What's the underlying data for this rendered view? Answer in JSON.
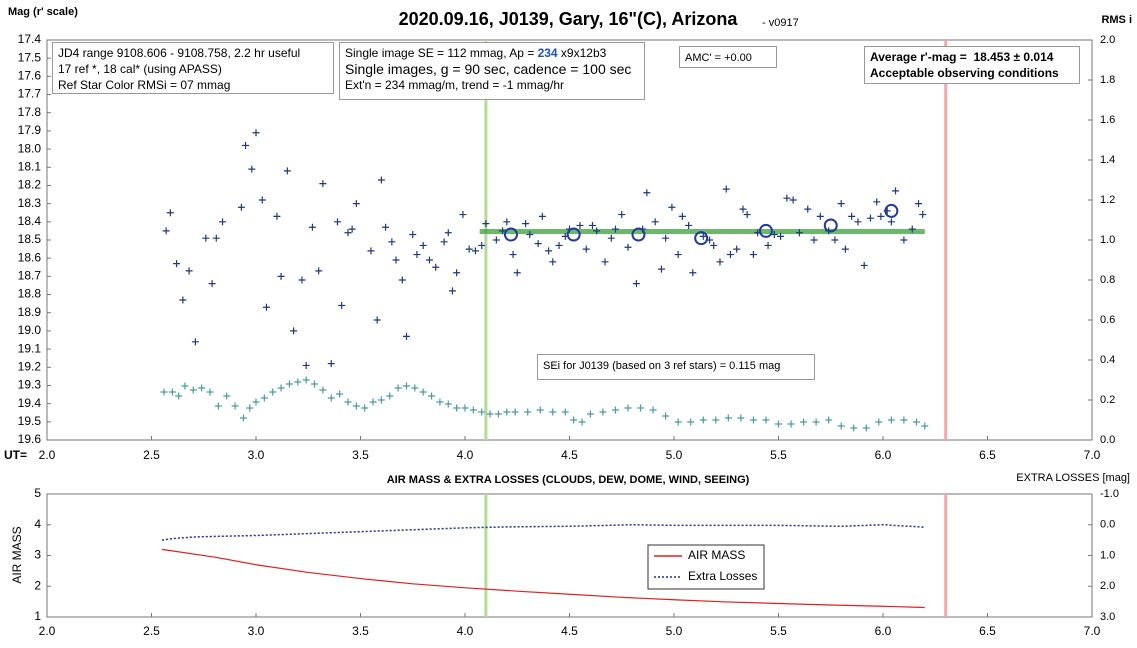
{
  "chart_data": [
    {
      "type": "scatter",
      "title": "2020.09.16, J0139, Gary, 16\"(C), Arizona",
      "subtitle": " - v0917",
      "ylabel": "Mag (r' scale)",
      "y2label": "RMS i",
      "xlabel": "UT=",
      "xlim": [
        2,
        7
      ],
      "xticks": [
        {
          "value": 2,
          "label": "2.0"
        },
        2.5,
        {
          "value": 3,
          "label": "3.0"
        },
        3.5,
        {
          "value": 4,
          "label": "4.0"
        },
        4.5,
        {
          "value": 5,
          "label": "5.0"
        },
        5.5,
        {
          "value": 6,
          "label": "6.0"
        },
        6.5,
        {
          "value": 7,
          "label": "7.0"
        }
      ],
      "ylim": [
        17.4,
        19.6
      ],
      "y_inverted": true,
      "yticks": [
        17.4,
        17.5,
        17.6,
        17.7,
        17.8,
        17.9,
        {
          "value": 18,
          "label": "18.0"
        },
        18.1,
        18.2,
        18.3,
        18.4,
        18.5,
        18.6,
        18.7,
        18.8,
        18.9,
        {
          "value": 19,
          "label": "19.0"
        },
        19.1,
        19.2,
        19.3,
        19.4,
        19.5,
        19.6
      ],
      "y2lim": [
        0,
        2
      ],
      "y2ticks": [
        {
          "value": 0,
          "label": "0.0"
        },
        0.2,
        0.4,
        0.6,
        0.8,
        {
          "value": 1,
          "label": "1.0"
        },
        1.2,
        1.4,
        1.6,
        1.8,
        {
          "value": 2,
          "label": "2.0"
        }
      ],
      "series": [
        {
          "color": "#1f3a7a",
          "marker": "plus",
          "x": [
            2.57,
            2.59,
            2.62,
            2.65,
            2.68,
            2.71,
            2.76,
            2.79,
            2.81,
            2.84,
            2.93,
            2.95,
            2.98,
            3.0,
            3.03,
            3.05,
            3.1,
            3.12,
            3.15,
            3.18,
            3.22,
            3.24,
            3.27,
            3.3,
            3.32,
            3.36,
            3.39,
            3.41,
            3.44,
            3.46,
            3.48,
            3.55,
            3.58,
            3.6,
            3.62,
            3.65,
            3.67,
            3.7,
            3.72,
            3.75,
            3.77,
            3.8,
            3.83,
            3.86,
            3.9,
            3.92,
            3.94,
            3.96,
            3.99,
            4.02,
            4.05,
            4.08,
            4.1,
            4.15,
            4.18,
            4.2,
            4.23,
            4.25,
            4.29,
            4.31,
            4.35,
            4.37,
            4.4,
            4.42,
            4.45,
            4.48,
            4.5,
            4.55,
            4.58,
            4.61,
            4.63,
            4.67,
            4.7,
            4.72,
            4.75,
            4.78,
            4.82,
            4.85,
            4.87,
            4.91,
            4.94,
            4.96,
            4.99,
            5.02,
            5.04,
            5.07,
            5.09,
            5.14,
            5.17,
            5.19,
            5.22,
            5.25,
            5.27,
            5.3,
            5.33,
            5.35,
            5.38,
            5.4,
            5.45,
            5.48,
            5.51,
            5.54,
            5.57,
            5.6,
            5.64,
            5.67,
            5.7,
            5.74,
            5.77,
            5.8,
            5.82,
            5.85,
            5.88,
            5.91,
            5.94,
            5.97,
            5.99,
            6.02,
            6.04,
            6.06,
            6.1,
            6.14,
            6.17,
            6.19
          ],
          "values": [
            18.45,
            18.35,
            18.63,
            18.83,
            18.67,
            19.06,
            18.49,
            18.74,
            18.49,
            18.4,
            18.32,
            17.98,
            18.11,
            17.91,
            18.28,
            18.87,
            18.37,
            18.7,
            18.12,
            19.0,
            18.72,
            19.19,
            18.43,
            18.67,
            18.19,
            19.18,
            18.4,
            18.86,
            18.46,
            18.44,
            18.3,
            18.56,
            18.94,
            18.17,
            18.43,
            18.51,
            18.61,
            18.72,
            19.03,
            18.47,
            18.58,
            18.53,
            18.61,
            18.65,
            18.51,
            18.46,
            18.78,
            18.68,
            18.36,
            18.55,
            18.56,
            18.53,
            18.41,
            18.5,
            18.45,
            18.4,
            18.58,
            18.68,
            18.41,
            18.47,
            18.52,
            18.37,
            18.56,
            18.62,
            18.53,
            18.48,
            18.44,
            18.42,
            18.55,
            18.42,
            18.45,
            18.62,
            18.49,
            18.44,
            18.36,
            18.54,
            18.74,
            18.44,
            18.24,
            18.4,
            18.66,
            18.49,
            18.32,
            18.58,
            18.37,
            18.42,
            18.68,
            18.48,
            18.5,
            18.53,
            18.62,
            18.22,
            18.58,
            18.55,
            18.33,
            18.36,
            18.58,
            18.46,
            18.53,
            18.47,
            18.48,
            18.27,
            18.28,
            18.46,
            18.33,
            18.5,
            18.37,
            18.45,
            18.5,
            18.3,
            18.55,
            18.37,
            18.4,
            18.64,
            18.38,
            18.29,
            18.37,
            18.34,
            18.4,
            18.23,
            18.5,
            18.44,
            18.3,
            18.36
          ]
        },
        {
          "color": "#1f3aa0",
          "marker": "circle",
          "x": [
            4.22,
            4.52,
            4.83,
            5.13,
            5.44,
            5.75,
            6.04
          ],
          "values": [
            18.47,
            18.47,
            18.47,
            18.49,
            18.45,
            18.42,
            18.34
          ]
        },
        {
          "color": "#4a9aa0",
          "marker": "plus",
          "axis": "y2",
          "x": [
            2.56,
            2.6,
            2.63,
            2.66,
            2.7,
            2.74,
            2.78,
            2.82,
            2.86,
            2.9,
            2.94,
            2.97,
            3.0,
            3.04,
            3.08,
            3.12,
            3.16,
            3.2,
            3.24,
            3.28,
            3.32,
            3.36,
            3.4,
            3.44,
            3.48,
            3.52,
            3.56,
            3.6,
            3.64,
            3.68,
            3.72,
            3.76,
            3.8,
            3.84,
            3.88,
            3.92,
            3.96,
            4.0,
            4.04,
            4.08,
            4.12,
            4.16,
            4.2,
            4.24,
            4.3,
            4.36,
            4.42,
            4.48,
            4.52,
            4.56,
            4.6,
            4.66,
            4.72,
            4.78,
            4.84,
            4.9,
            4.96,
            5.02,
            5.08,
            5.14,
            5.2,
            5.26,
            5.32,
            5.38,
            5.44,
            5.5,
            5.56,
            5.62,
            5.68,
            5.74,
            5.8,
            5.86,
            5.92,
            5.98,
            6.04,
            6.1,
            6.16,
            6.2
          ],
          "values": [
            0.24,
            0.24,
            0.22,
            0.27,
            0.25,
            0.26,
            0.24,
            0.17,
            0.22,
            0.17,
            0.11,
            0.16,
            0.19,
            0.21,
            0.24,
            0.26,
            0.28,
            0.29,
            0.3,
            0.28,
            0.25,
            0.21,
            0.23,
            0.19,
            0.17,
            0.16,
            0.19,
            0.2,
            0.22,
            0.26,
            0.27,
            0.26,
            0.24,
            0.22,
            0.19,
            0.18,
            0.16,
            0.16,
            0.15,
            0.14,
            0.13,
            0.13,
            0.14,
            0.14,
            0.14,
            0.15,
            0.14,
            0.14,
            0.1,
            0.09,
            0.13,
            0.14,
            0.15,
            0.16,
            0.16,
            0.15,
            0.12,
            0.09,
            0.09,
            0.1,
            0.1,
            0.11,
            0.11,
            0.1,
            0.1,
            0.08,
            0.08,
            0.09,
            0.09,
            0.1,
            0.07,
            0.06,
            0.06,
            0.09,
            0.1,
            0.1,
            0.09,
            0.07
          ]
        }
      ],
      "mean_line": {
        "x": [
          4.07,
          6.2
        ],
        "value": 18.453,
        "color": "#3aa03a"
      },
      "vlines": [
        {
          "x": 4.1,
          "color": "#b5dc96"
        },
        {
          "x": 6.3,
          "color": "#f2a9a9"
        }
      ],
      "annotations": [
        {
          "lines": [
            [
              "JD4 range 9108.606 - 9108.758, 2.2 hr useful"
            ],
            [
              "17 ref *, 18 cal* (using APASS)"
            ],
            [
              "Ref Star Color RMSi = 07 mmag"
            ]
          ]
        },
        {
          "lines": [
            [
              "Single image SE = 112 mmag, Ap = ",
              {
                "text": "234",
                "bold": true,
                "color": "#1f4fbf"
              },
              " x9x12b3"
            ],
            [
              "Single images, g = 90 sec, cadence = 100 sec"
            ],
            [
              "Ext'n = 234 mmag/m, trend = -1 mmag/hr"
            ]
          ]
        },
        {
          "lines": [
            [
              "AMC' = +0.00"
            ]
          ]
        },
        {
          "lines": [
            [
              {
                "text": "Average r'-mag =  18.453 ± 0.014",
                "bold": true
              }
            ],
            [
              {
                "text": "Acceptable observing conditions",
                "bold": true
              }
            ]
          ]
        },
        {
          "lines": [
            [
              "SEi for J0139 (based on 3 ref stars) = 0.115 mag"
            ]
          ]
        }
      ]
    },
    {
      "type": "line",
      "title": "AIR MASS & EXTRA LOSSES (CLOUDS, DEW, DOME, WIND, SEEING)",
      "ylabel": "AIR MASS",
      "y2label": "EXTRA LOSSES [mag]",
      "xlim": [
        2,
        7
      ],
      "xticks": [
        {
          "value": 2,
          "label": "2.0"
        },
        2.5,
        {
          "value": 3,
          "label": "3.0"
        },
        3.5,
        {
          "value": 4,
          "label": "4.0"
        },
        4.5,
        {
          "value": 5,
          "label": "5.0"
        },
        5.5,
        {
          "value": 6,
          "label": "6.0"
        },
        6.5,
        {
          "value": 7,
          "label": "7.0"
        }
      ],
      "ylim": [
        1,
        5
      ],
      "yticks": [
        1,
        2,
        3,
        4,
        5
      ],
      "y2lim": [
        -1,
        3
      ],
      "y2_inverted": true,
      "y2ticks": [
        {
          "value": -1,
          "label": "-1.0"
        },
        {
          "value": 0,
          "label": "0.0"
        },
        {
          "value": 1,
          "label": "1.0"
        },
        {
          "value": 2,
          "label": "2.0"
        },
        {
          "value": 3,
          "label": "3.0"
        }
      ],
      "series": [
        {
          "name": "AIR MASS",
          "color": "#e02020",
          "x": [
            2.55,
            2.8,
            3.0,
            3.25,
            3.5,
            3.75,
            4.0,
            4.25,
            4.5,
            4.75,
            5.0,
            5.25,
            5.5,
            5.75,
            6.0,
            6.2
          ],
          "values": [
            3.2,
            2.95,
            2.7,
            2.45,
            2.25,
            2.08,
            1.95,
            1.84,
            1.74,
            1.64,
            1.56,
            1.49,
            1.44,
            1.39,
            1.35,
            1.31
          ]
        },
        {
          "name": "Extra Losses",
          "color": "#1f2f9f",
          "axis": "y2",
          "dashed": true,
          "x": [
            2.55,
            2.6,
            2.7,
            2.8,
            3.0,
            3.2,
            3.4,
            3.6,
            3.8,
            4.0,
            4.2,
            4.5,
            4.8,
            5.0,
            5.2,
            5.5,
            5.8,
            6.0,
            6.2
          ],
          "values": [
            0.5,
            0.45,
            0.4,
            0.38,
            0.35,
            0.3,
            0.25,
            0.2,
            0.15,
            0.1,
            0.07,
            0.05,
            0.0,
            0.02,
            0.02,
            0.02,
            0.05,
            0.0,
            0.08
          ]
        }
      ],
      "vlines": [
        {
          "x": 4.1,
          "color": "#b5dc96"
        },
        {
          "x": 6.3,
          "color": "#f2a9a9"
        }
      ]
    }
  ]
}
